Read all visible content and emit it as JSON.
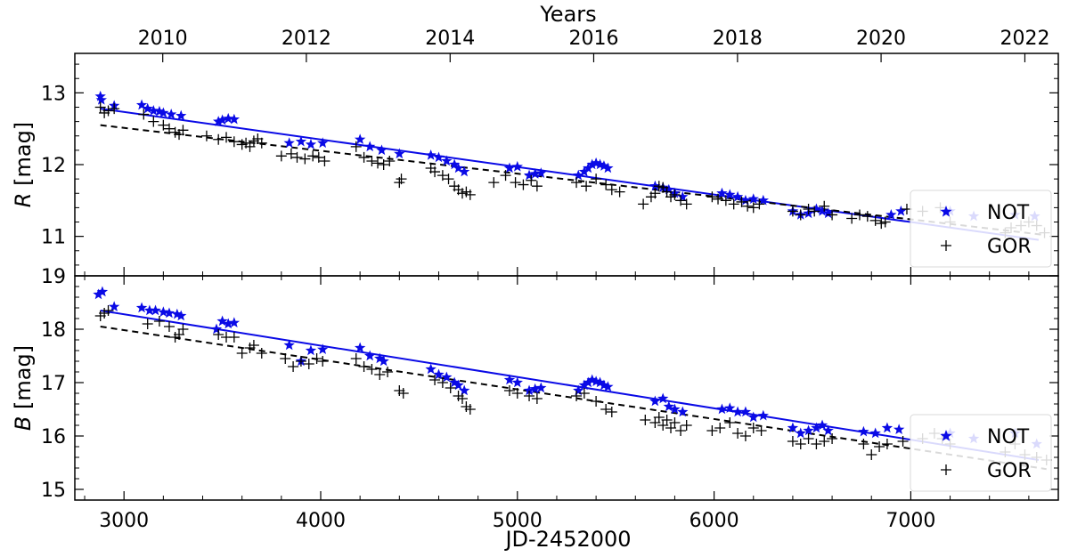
{
  "chart_data": [
    {
      "type": "scatter",
      "panel": "top",
      "xlabel": "JD-2452000",
      "ylabel_prefix": "R",
      "ylabel_suffix": " [mag]",
      "xlim": [
        2750,
        7750
      ],
      "ylim": [
        13.55,
        10.45
      ],
      "y_inverted": true,
      "y_ticks": [
        11,
        12,
        13
      ],
      "top_axis": {
        "label": "Years",
        "ticks": [
          {
            "label": "2010",
            "jd": 3197
          },
          {
            "label": "2012",
            "jd": 3927
          },
          {
            "label": "2014",
            "jd": 4658
          },
          {
            "label": "2016",
            "jd": 5388
          },
          {
            "label": "2018",
            "jd": 6119
          },
          {
            "label": "2020",
            "jd": 6849
          },
          {
            "label": "2022",
            "jd": 7580
          }
        ]
      },
      "legend": {
        "placement": "lower-right",
        "entries": [
          "NOT",
          "GOR"
        ]
      },
      "colors": {
        "NOT": "#0a0ae6",
        "GOR": "#000000"
      },
      "series": [
        {
          "name": "NOT",
          "marker": "star",
          "color": "#0a0ae6",
          "x": [
            2880,
            2885,
            2950,
            3090,
            3120,
            3150,
            3180,
            3200,
            3240,
            3290,
            3480,
            3500,
            3530,
            3560,
            3840,
            3900,
            3950,
            4010,
            4200,
            4250,
            4310,
            4400,
            4560,
            4600,
            4640,
            4680,
            4700,
            4730,
            4960,
            5000,
            5060,
            5090,
            5120,
            5310,
            5340,
            5360,
            5380,
            5400,
            5420,
            5440,
            5460,
            5700,
            5740,
            5770,
            5800,
            5840,
            6040,
            6080,
            6120,
            6160,
            6200,
            6250,
            6400,
            6440,
            6480,
            6520,
            6550,
            6580,
            6900,
            6950,
            7200,
            7320,
            7530,
            7630
          ],
          "y": [
            12.95,
            12.9,
            12.82,
            12.83,
            12.78,
            12.75,
            12.74,
            12.72,
            12.7,
            12.68,
            12.6,
            12.62,
            12.64,
            12.63,
            12.3,
            12.32,
            12.28,
            12.3,
            12.35,
            12.25,
            12.2,
            12.15,
            12.13,
            12.1,
            12.05,
            12.0,
            11.95,
            11.9,
            11.95,
            11.97,
            11.85,
            11.87,
            11.88,
            11.85,
            11.9,
            11.95,
            12.0,
            12.02,
            12.0,
            11.98,
            11.95,
            11.7,
            11.68,
            11.65,
            11.6,
            11.55,
            11.6,
            11.58,
            11.55,
            11.5,
            11.52,
            11.5,
            11.35,
            11.3,
            11.32,
            11.38,
            11.35,
            11.32,
            11.3,
            11.35,
            11.35,
            11.28,
            11.3,
            11.28
          ]
        },
        {
          "name": "GOR",
          "marker": "plus",
          "color": "#000000",
          "x": [
            2880,
            2900,
            2920,
            2950,
            3100,
            3150,
            3200,
            3230,
            3260,
            3280,
            3300,
            3420,
            3480,
            3520,
            3560,
            3600,
            3620,
            3640,
            3660,
            3680,
            3700,
            3800,
            3850,
            3880,
            3920,
            3960,
            3990,
            4020,
            4180,
            4220,
            4260,
            4290,
            4320,
            4350,
            4400,
            4410,
            4560,
            4580,
            4620,
            4650,
            4680,
            4700,
            4720,
            4740,
            4760,
            4880,
            4940,
            4990,
            5030,
            5070,
            5100,
            5300,
            5350,
            5400,
            5450,
            5480,
            5520,
            5640,
            5680,
            5700,
            5720,
            5740,
            5760,
            5780,
            5800,
            5830,
            5860,
            5990,
            6020,
            6060,
            6100,
            6140,
            6170,
            6200,
            6230,
            6400,
            6440,
            6480,
            6510,
            6560,
            6600,
            6700,
            6740,
            6780,
            6820,
            6850,
            6870,
            6980,
            7060,
            7150,
            7200,
            7480,
            7510,
            7560,
            7600,
            7640,
            7680
          ],
          "y": [
            12.8,
            12.72,
            12.75,
            12.78,
            12.7,
            12.6,
            12.55,
            12.5,
            12.45,
            12.42,
            12.48,
            12.4,
            12.35,
            12.38,
            12.32,
            12.28,
            12.3,
            12.25,
            12.33,
            12.36,
            12.3,
            12.12,
            12.15,
            12.1,
            12.08,
            12.12,
            12.1,
            12.05,
            12.25,
            12.1,
            12.05,
            12.02,
            12.0,
            12.05,
            11.75,
            11.8,
            11.95,
            11.9,
            11.85,
            11.8,
            11.7,
            11.65,
            11.6,
            11.62,
            11.58,
            11.75,
            11.85,
            11.75,
            11.72,
            11.78,
            11.7,
            11.75,
            11.7,
            11.8,
            11.72,
            11.65,
            11.62,
            11.45,
            11.55,
            11.6,
            11.7,
            11.68,
            11.62,
            11.55,
            11.58,
            11.5,
            11.45,
            11.55,
            11.52,
            11.5,
            11.45,
            11.48,
            11.42,
            11.4,
            11.45,
            11.35,
            11.3,
            11.38,
            11.35,
            11.42,
            11.3,
            11.25,
            11.3,
            11.28,
            11.22,
            11.18,
            11.2,
            11.38,
            11.35,
            11.4,
            11.2,
            11.05,
            11.12,
            11.15,
            11.2,
            11.15,
            11.05
          ]
        }
      ],
      "fits": [
        {
          "name": "NOT",
          "style": "solid",
          "color": "#0a0ae6",
          "x": [
            2880,
            7650
          ],
          "y": [
            12.78,
            10.95
          ]
        },
        {
          "name": "GOR",
          "style": "dashed",
          "color": "#000000",
          "x": [
            2880,
            7680
          ],
          "y": [
            12.55,
            11.02
          ]
        }
      ]
    },
    {
      "type": "scatter",
      "panel": "bottom",
      "xlabel": "JD-2452000",
      "ylabel_prefix": "B",
      "ylabel_suffix": " [mag]",
      "xlim": [
        2750,
        7750
      ],
      "ylim": [
        19.0,
        14.8
      ],
      "y_inverted": true,
      "y_ticks": [
        15,
        16,
        17,
        18,
        19
      ],
      "x_ticks": [
        3000,
        4000,
        5000,
        6000,
        7000
      ],
      "legend": {
        "placement": "lower-right",
        "entries": [
          "NOT",
          "GOR"
        ]
      },
      "colors": {
        "NOT": "#0a0ae6",
        "GOR": "#000000"
      },
      "series": [
        {
          "name": "NOT",
          "marker": "star",
          "color": "#0a0ae6",
          "x": [
            2870,
            2890,
            2950,
            3090,
            3130,
            3160,
            3200,
            3230,
            3270,
            3290,
            3470,
            3500,
            3530,
            3560,
            3840,
            3900,
            3950,
            4010,
            4200,
            4250,
            4300,
            4320,
            4560,
            4600,
            4640,
            4680,
            4700,
            4730,
            4960,
            5000,
            5060,
            5090,
            5120,
            5310,
            5340,
            5360,
            5380,
            5400,
            5420,
            5440,
            5460,
            5700,
            5740,
            5770,
            5800,
            5840,
            6040,
            6080,
            6120,
            6160,
            6200,
            6250,
            6400,
            6440,
            6480,
            6520,
            6550,
            6580,
            6760,
            6820,
            6880,
            6940,
            7200,
            7320,
            7530,
            7640
          ],
          "y": [
            18.65,
            18.7,
            18.42,
            18.4,
            18.35,
            18.35,
            18.32,
            18.3,
            18.28,
            18.25,
            18.0,
            18.15,
            18.1,
            18.12,
            17.7,
            17.4,
            17.6,
            17.62,
            17.65,
            17.5,
            17.45,
            17.4,
            17.25,
            17.15,
            17.1,
            17.0,
            16.95,
            16.85,
            17.05,
            17.0,
            16.85,
            16.88,
            16.9,
            16.85,
            16.95,
            17.0,
            17.05,
            17.02,
            17.0,
            16.95,
            16.92,
            16.65,
            16.7,
            16.55,
            16.5,
            16.45,
            16.5,
            16.52,
            16.45,
            16.45,
            16.35,
            16.38,
            16.15,
            16.05,
            16.1,
            16.15,
            16.2,
            16.1,
            16.08,
            16.05,
            16.15,
            16.12,
            16.05,
            15.95,
            16.05,
            15.85
          ]
        },
        {
          "name": "GOR",
          "marker": "plus",
          "color": "#000000",
          "x": [
            2880,
            2900,
            2920,
            3120,
            3180,
            3230,
            3260,
            3280,
            3300,
            3480,
            3520,
            3560,
            3600,
            3640,
            3660,
            3700,
            3820,
            3860,
            3900,
            3940,
            3980,
            4010,
            4180,
            4220,
            4260,
            4300,
            4340,
            4400,
            4420,
            4580,
            4620,
            4660,
            4700,
            4720,
            4740,
            4760,
            4960,
            5000,
            5060,
            5100,
            5300,
            5340,
            5400,
            5450,
            5480,
            5650,
            5700,
            5720,
            5740,
            5760,
            5780,
            5800,
            5830,
            5860,
            5990,
            6030,
            6080,
            6120,
            6160,
            6200,
            6240,
            6400,
            6440,
            6480,
            6520,
            6560,
            6600,
            6760,
            6800,
            6840,
            6880,
            6960,
            7060,
            7120,
            7160,
            7200,
            7480,
            7530,
            7580,
            7640,
            7690
          ],
          "y": [
            18.25,
            18.3,
            18.35,
            18.1,
            18.15,
            18.05,
            17.85,
            17.9,
            18.0,
            17.9,
            17.85,
            17.85,
            17.55,
            17.65,
            17.7,
            17.55,
            17.45,
            17.3,
            17.4,
            17.35,
            17.45,
            17.4,
            17.45,
            17.3,
            17.25,
            17.15,
            17.2,
            16.85,
            16.8,
            17.05,
            17.0,
            16.9,
            16.75,
            16.7,
            16.55,
            16.5,
            16.85,
            16.8,
            16.75,
            16.7,
            16.75,
            16.8,
            16.65,
            16.5,
            16.45,
            16.3,
            16.25,
            16.35,
            16.2,
            16.3,
            16.15,
            16.25,
            16.1,
            16.2,
            16.1,
            16.15,
            16.25,
            16.05,
            16.0,
            16.15,
            16.1,
            15.9,
            15.85,
            15.95,
            15.85,
            15.9,
            15.95,
            15.85,
            15.65,
            15.8,
            15.85,
            15.9,
            15.95,
            16.05,
            15.95,
            15.85,
            15.7,
            15.85,
            15.65,
            15.6,
            15.55
          ]
        }
      ],
      "fits": [
        {
          "name": "NOT",
          "style": "solid",
          "color": "#0a0ae6",
          "x": [
            2880,
            7650
          ],
          "y": [
            18.35,
            15.55
          ]
        },
        {
          "name": "GOR",
          "style": "dashed",
          "color": "#000000",
          "x": [
            2880,
            7690
          ],
          "y": [
            18.05,
            15.38
          ]
        }
      ]
    }
  ]
}
